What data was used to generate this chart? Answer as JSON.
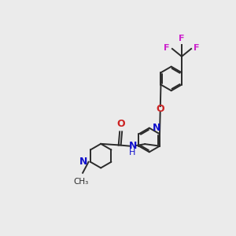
{
  "bg_color": "#ebebeb",
  "bond_color": "#2a2a2a",
  "N_color": "#1010cc",
  "O_color": "#cc2222",
  "F_color": "#cc22cc",
  "line_width": 1.4,
  "dbo": 0.055,
  "xlim": [
    0,
    10
  ],
  "ylim": [
    0,
    10
  ]
}
